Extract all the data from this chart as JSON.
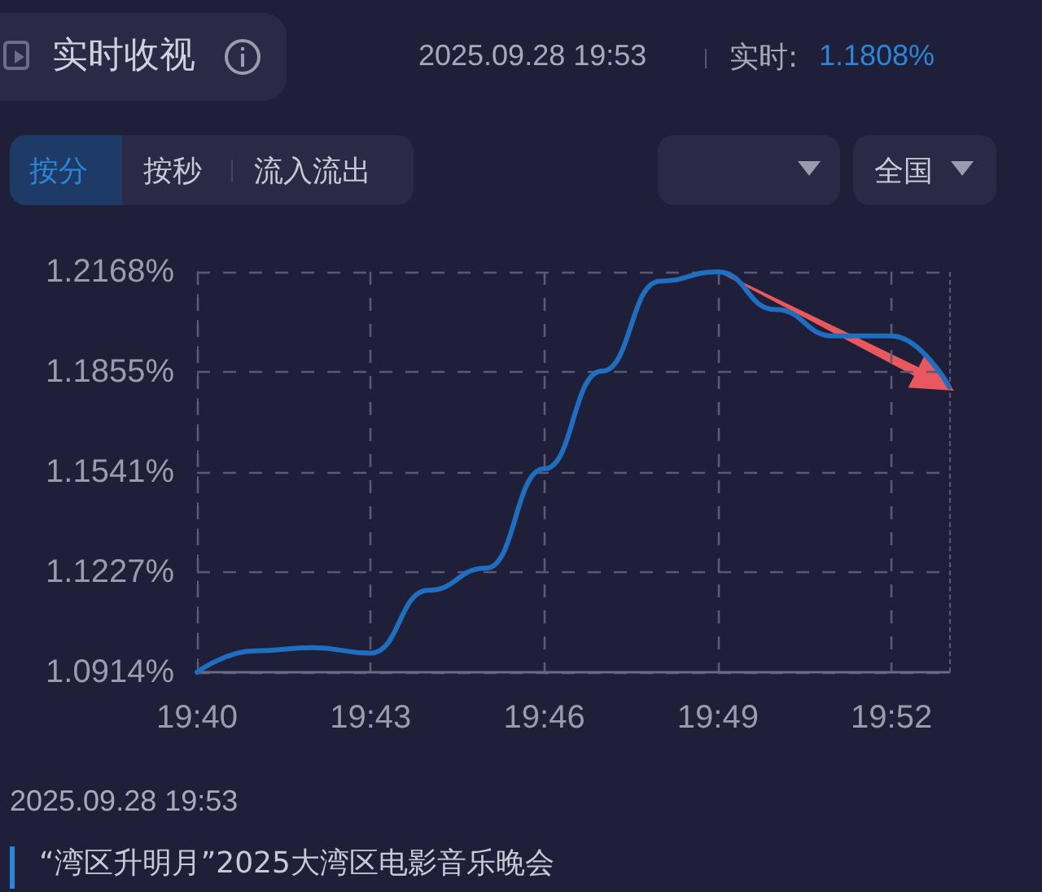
{
  "chart_data": {
    "type": "line",
    "title": "实时收视",
    "subtitle": "2025.09.28 19:53",
    "annotations": [
      "实时:",
      "1.1808%",
      "按分",
      "按秒",
      "流入流出",
      "全国",
      "2025.09.28 19:53",
      "“湾区升明月”2025大湾区电影音乐晚会"
    ],
    "x": [
      19.6667,
      19.6833,
      19.7,
      19.7167,
      19.7333,
      19.75,
      19.7667,
      19.7833,
      19.8,
      19.8167,
      19.8333,
      19.85,
      19.8667,
      19.8833
    ],
    "series": [
      {
        "color": "#1f6fc0",
        "values": [
          1.0914,
          1.0981,
          1.0991,
          1.0974,
          1.1171,
          1.124,
          1.1551,
          1.1857,
          1.2139,
          1.2168,
          1.205,
          1.1967,
          1.1967,
          1.1808
        ]
      }
    ],
    "xlim": [
      19.6667,
      19.8833
    ],
    "xticks": [
      {
        "value": 19.6667,
        "label": "19:40"
      },
      {
        "value": 19.7167,
        "label": "19:43"
      },
      {
        "value": 19.7667,
        "label": "19:46"
      },
      {
        "value": 19.8167,
        "label": "19:49"
      },
      {
        "value": 19.8667,
        "label": "19:52"
      }
    ],
    "ylim": [
      1.0914,
      1.2168
    ],
    "yticks": [
      {
        "value": 1.0914,
        "label": "1.0914%"
      },
      {
        "value": 1.1227,
        "label": "1.1227%"
      },
      {
        "value": 1.1541,
        "label": "1.1541%"
      },
      {
        "value": 1.1855,
        "label": "1.1855%"
      },
      {
        "value": 1.2168,
        "label": "1.2168%"
      }
    ],
    "grid": true,
    "marker": "none",
    "line_style": "solid"
  }
}
